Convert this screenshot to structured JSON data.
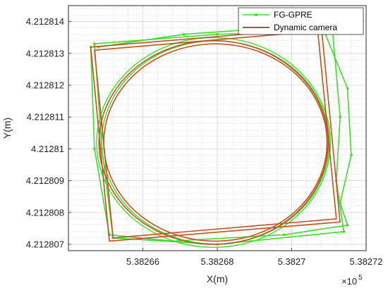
{
  "chart_data": {
    "type": "line",
    "xlabel": "X(m)",
    "ylabel": "Y(m)",
    "x_exponent_label": "×10",
    "x_exponent_power": "5",
    "xlim": [
      5.38264,
      5.38272
    ],
    "ylim": [
      4.2128068,
      4.2128145
    ],
    "x_ticks": [
      5.38266,
      5.38268,
      5.3827,
      5.38272
    ],
    "x_tick_labels": [
      "5.38266",
      "5.38268",
      "5.3827",
      "5.38272"
    ],
    "y_ticks": [
      4.212807,
      4.212808,
      4.212809,
      4.21281,
      4.212811,
      4.212812,
      4.212813,
      4.212814
    ],
    "y_tick_labels": [
      "4.212807",
      "4.212808",
      "4.212809",
      "4.21281",
      "4.212811",
      "4.212812",
      "4.212813",
      "4.212814"
    ],
    "grid": true,
    "minor_grid": true,
    "legend_position": "top-right",
    "series": [
      {
        "name": "FG-GPRE",
        "color": "#3ddc2a",
        "style": "line-with-points",
        "paths": [
          [
            [
              5.382648,
              4.2128132
            ],
            [
              5.382671,
              4.2128136
            ],
            [
              5.382708,
              4.2128139
            ],
            [
              5.382715,
              4.2128119
            ],
            [
              5.382716,
              4.2128098
            ],
            [
              5.382713,
              4.2128083
            ],
            [
              5.382715,
              4.2128076
            ],
            [
              5.382698,
              4.2128073
            ],
            [
              5.382668,
              4.2128071
            ],
            [
              5.382651,
              4.2128073
            ],
            [
              5.382647,
              4.21281
            ],
            [
              5.382646,
              4.2128132
            ]
          ],
          [
            [
              5.382647,
              4.2128133
            ],
            [
              5.38268,
              4.2128136
            ],
            [
              5.382711,
              4.2128137
            ],
            [
              5.382713,
              4.212811
            ],
            [
              5.382712,
              4.212809
            ],
            [
              5.382714,
              4.2128074
            ],
            [
              5.38268,
              4.212807
            ],
            [
              5.382652,
              4.2128072
            ],
            [
              5.382649,
              4.21281
            ],
            [
              5.382647,
              4.2128133
            ]
          ]
        ]
      },
      {
        "name": "Dynamic camera",
        "color": "#c0501f",
        "style": "line",
        "paths": [
          [
            [
              5.382646,
              4.2128132
            ],
            [
              5.382708,
              4.2128138
            ],
            [
              5.382713,
              4.2128077
            ],
            [
              5.382651,
              4.2128071
            ],
            [
              5.382646,
              4.2128132
            ]
          ],
          [
            [
              5.382647,
              4.2128131
            ],
            [
              5.382707,
              4.2128137
            ],
            [
              5.382712,
              4.2128078
            ],
            [
              5.382652,
              4.2128072
            ],
            [
              5.382647,
              4.2128131
            ]
          ]
        ],
        "ellipses": [
          {
            "cx": 5.382679,
            "cy": 4.2128102,
            "rx": 3.08e-05,
            "ry": 3.2e-06
          },
          {
            "cx": 5.3826795,
            "cy": 4.2128102,
            "rx": 3e-05,
            "ry": 3.1e-06
          }
        ]
      }
    ]
  }
}
